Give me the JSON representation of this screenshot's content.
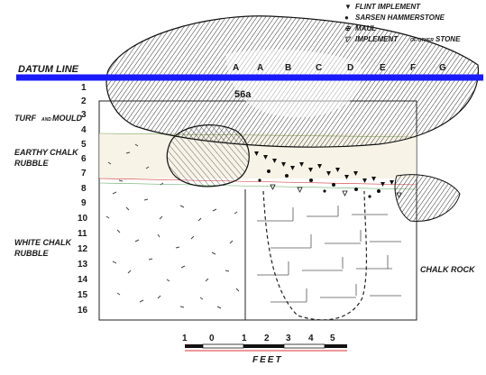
{
  "legend": {
    "items": [
      {
        "symbol": "▼",
        "text": "FLINT IMPLEMENT"
      },
      {
        "symbol": "●",
        "text": "SARSEN HAMMERSTONE"
      },
      {
        "symbol": "⊕",
        "text": "MAUL"
      },
      {
        "symbol": "▽",
        "text": "IMPLEMENT"
      }
    ],
    "implement_small": "OF OTHER",
    "implement_tail": "STONE"
  },
  "datum_label": "DATUM LINE",
  "stone_label": "56a",
  "column_letters": [
    "A",
    "A",
    "B",
    "C",
    "D",
    "E",
    "F",
    "G"
  ],
  "depth_numbers": [
    "1",
    "2",
    "3",
    "4",
    "5",
    "6",
    "7",
    "8",
    "9",
    "10",
    "11",
    "12",
    "13",
    "14",
    "15",
    "16"
  ],
  "layers": {
    "turf_1": "TURF",
    "turf_conn": "AND",
    "turf_2": "MOULD",
    "earthy_1": "EARTHY CHALK",
    "earthy_2": "RUBBLE",
    "white_1": "WHITE CHALK",
    "white_2": "RUBBLE",
    "chalk_rock": "CHALK ROCK"
  },
  "scale": {
    "ticks": [
      "1",
      "0",
      "1",
      "2",
      "3",
      "4",
      "5"
    ],
    "unit": "FEET"
  },
  "colors": {
    "datum_line": "#1a1aff",
    "ink": "#1a1a1a",
    "earthy_band": "#f2ecd0"
  }
}
